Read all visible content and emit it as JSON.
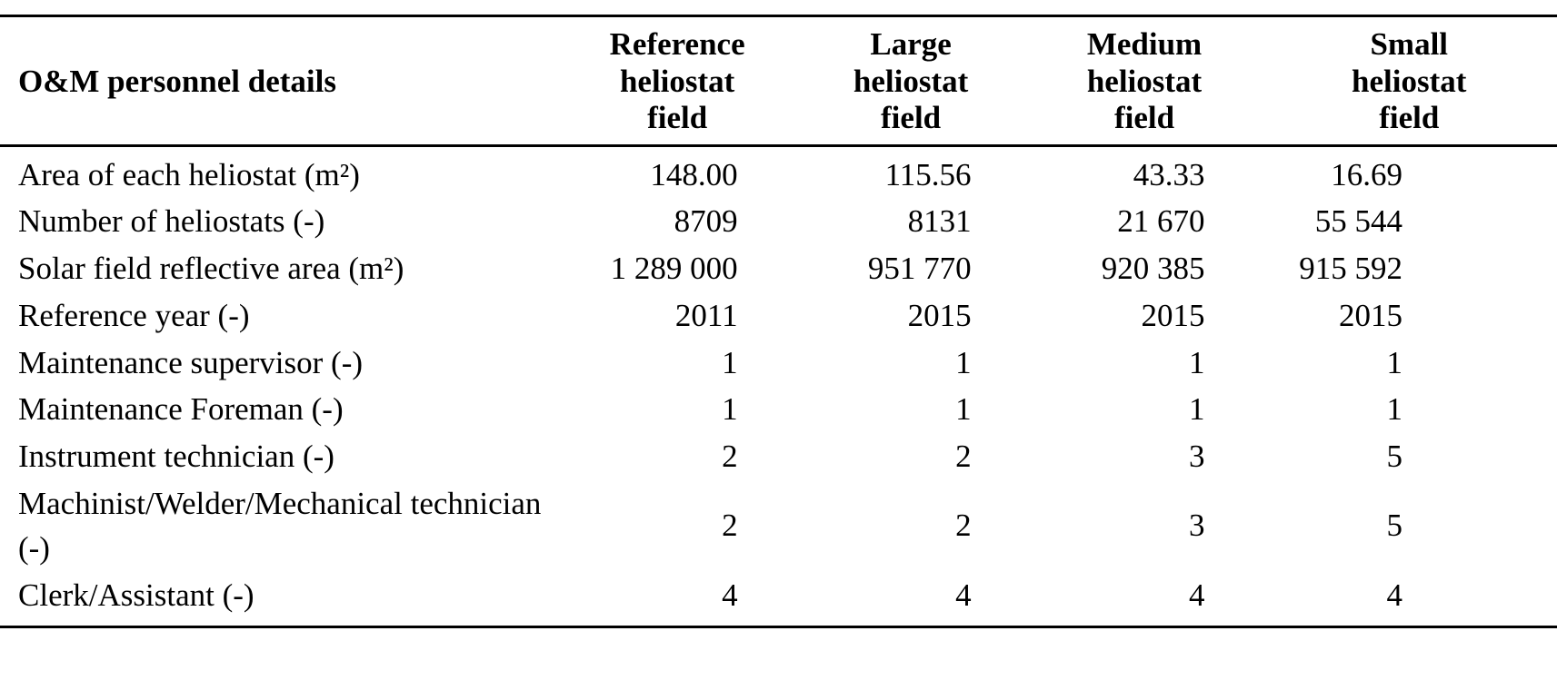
{
  "document": {
    "background_color": "#ffffff",
    "text_color": "#000000",
    "rule_color": "#000000"
  },
  "table": {
    "header": {
      "row_label_header": "O&M personnel details",
      "columns": [
        "Reference\nheliostat\nfield",
        "Large\nheliostat\nfield",
        "Medium\nheliostat\nfield",
        "Small\nheliostat\nfield"
      ]
    },
    "rows": [
      {
        "label": "Area  of each heliostat (m²)",
        "values": [
          "148.00",
          "115.56",
          "43.33",
          "16.69"
        ]
      },
      {
        "label": "Number of heliostats (-)",
        "values": [
          "8709",
          "8131",
          "21 670",
          "55 544"
        ]
      },
      {
        "label": "Solar field reflective area (m²)",
        "values": [
          "1 289 000",
          "951 770",
          "920 385",
          "915 592"
        ]
      },
      {
        "label": "Reference year (-)",
        "values": [
          "2011",
          "2015",
          "2015",
          "2015"
        ]
      },
      {
        "label": "Maintenance supervisor (-)",
        "values": [
          "1",
          "1",
          "1",
          "1"
        ]
      },
      {
        "label": "Maintenance Foreman (-)",
        "values": [
          "1",
          "1",
          "1",
          "1"
        ]
      },
      {
        "label": "Instrument technician (-)",
        "values": [
          "2",
          "2",
          "3",
          "5"
        ]
      },
      {
        "label": "Machinist/Welder/Mechanical technician (-)",
        "values": [
          "2",
          "2",
          "3",
          "5"
        ]
      },
      {
        "label": "Clerk/Assistant (-)",
        "values": [
          "4",
          "4",
          "4",
          "4"
        ]
      }
    ]
  }
}
